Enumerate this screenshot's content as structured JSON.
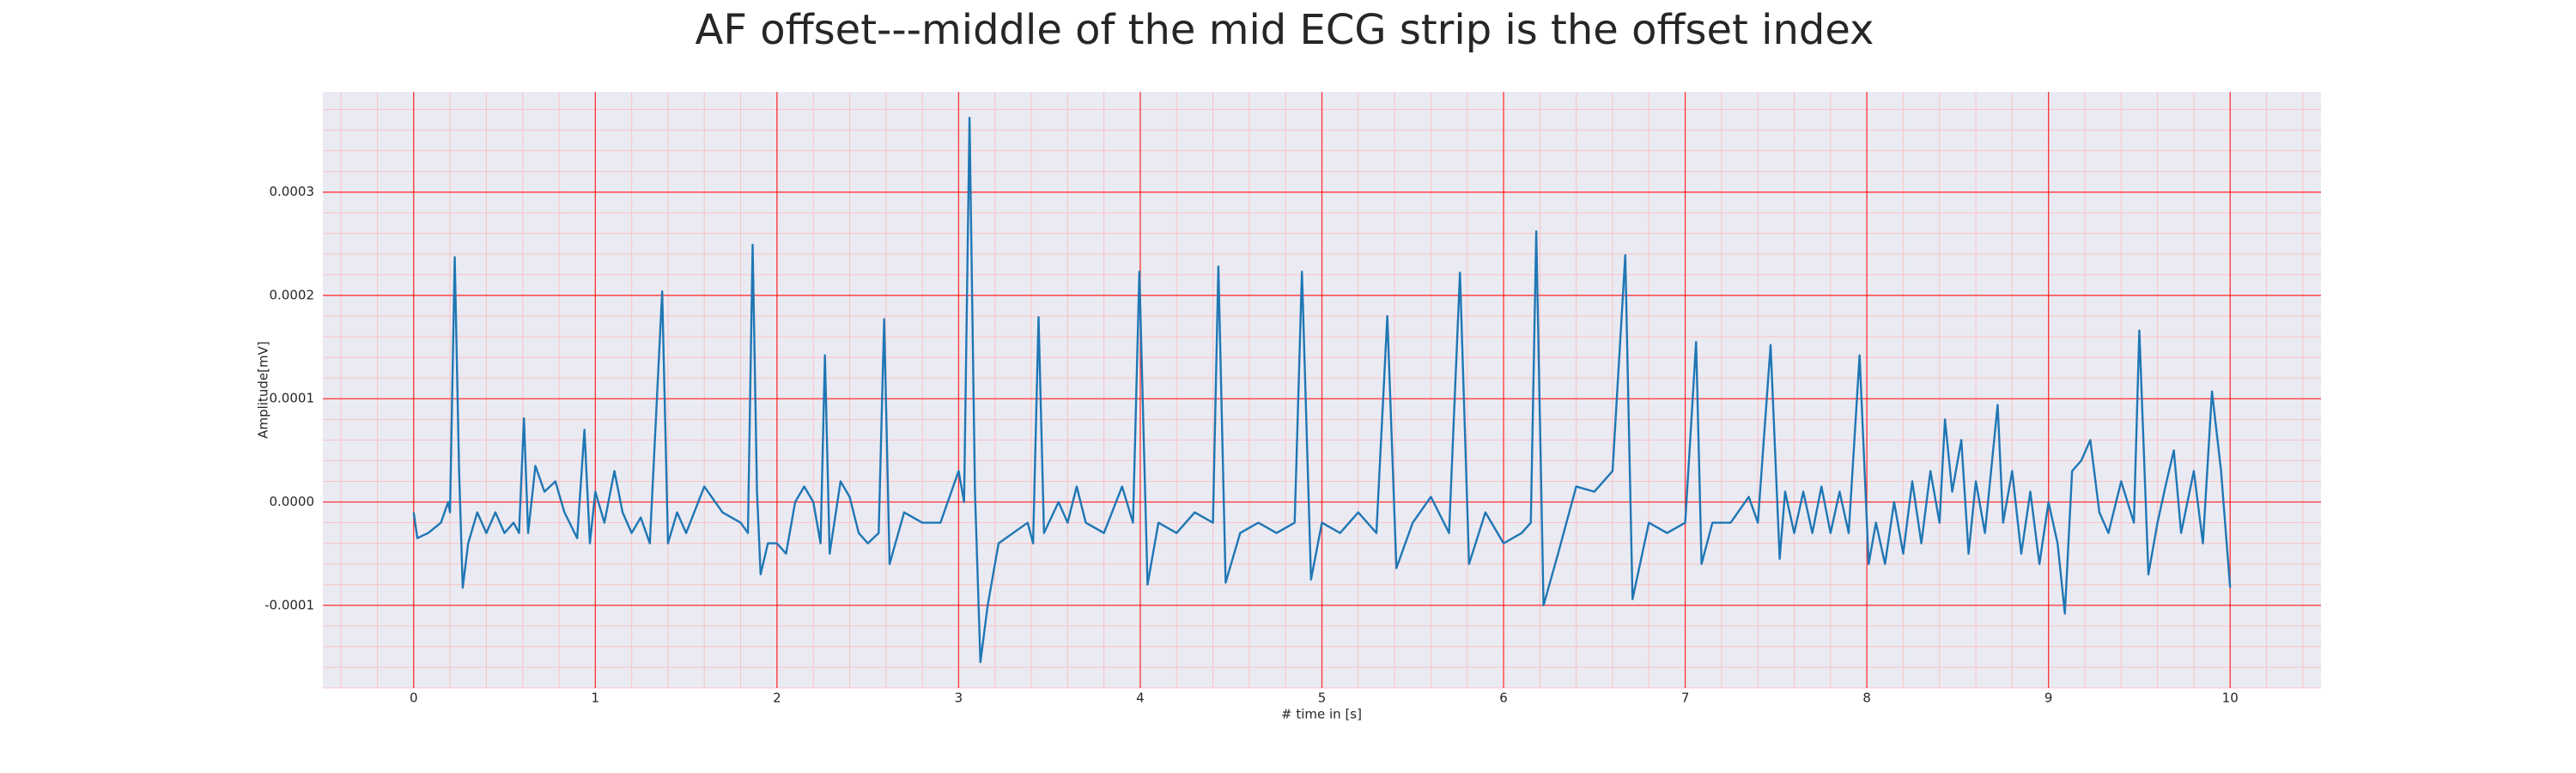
{
  "chart_data": {
    "type": "line",
    "title": "AF offset---middle of the mid ECG strip is the offset index",
    "xlabel": "# time in [s]",
    "ylabel": "Amplitude[mV]",
    "color": "#1f77b4",
    "background": "#eaeaf2",
    "grid": true,
    "grid_color": "#ff0000",
    "minor_grid": true,
    "minor_grid_color": "#ffb3b3",
    "xlim": [
      -0.5,
      10.5
    ],
    "ylim": [
      -0.00018,
      0.000397
    ],
    "xticks": [
      0,
      1,
      2,
      3,
      4,
      5,
      6,
      7,
      8,
      9,
      10
    ],
    "yticks": [
      -0.0001,
      {
        "value": 0,
        "label": "0.0000"
      },
      0.0001,
      0.0002,
      0.0003
    ],
    "x": [
      0,
      0.02,
      0.08,
      0.15,
      0.19,
      0.2,
      0.226,
      0.25,
      0.27,
      0.3,
      0.35,
      0.4,
      0.45,
      0.5,
      0.55,
      0.58,
      0.607,
      0.63,
      0.67,
      0.72,
      0.78,
      0.83,
      0.9,
      0.94,
      0.97,
      1.0,
      1.05,
      1.105,
      1.15,
      1.2,
      1.25,
      1.3,
      1.368,
      1.4,
      1.45,
      1.5,
      1.6,
      1.7,
      1.8,
      1.84,
      1.866,
      1.89,
      1.91,
      1.95,
      2.0,
      2.05,
      2.1,
      2.15,
      2.2,
      2.24,
      2.264,
      2.29,
      2.35,
      2.4,
      2.45,
      2.5,
      2.56,
      2.59,
      2.62,
      2.7,
      2.8,
      2.9,
      3.0,
      3.03,
      3.06,
      3.09,
      3.12,
      3.16,
      3.22,
      3.3,
      3.38,
      3.41,
      3.44,
      3.47,
      3.55,
      3.6,
      3.65,
      3.7,
      3.8,
      3.9,
      3.96,
      3.995,
      4.04,
      4.1,
      4.2,
      4.3,
      4.4,
      4.43,
      4.47,
      4.55,
      4.65,
      4.75,
      4.85,
      4.89,
      4.94,
      5.0,
      5.1,
      5.2,
      5.3,
      5.36,
      5.41,
      5.5,
      5.6,
      5.7,
      5.76,
      5.81,
      5.9,
      6.0,
      6.1,
      6.15,
      6.18,
      6.22,
      6.3,
      6.4,
      6.5,
      6.6,
      6.67,
      6.71,
      6.8,
      6.9,
      7.0,
      7.06,
      7.09,
      7.15,
      7.25,
      7.35,
      7.4,
      7.47,
      7.52,
      7.55,
      7.6,
      7.65,
      7.7,
      7.75,
      7.8,
      7.85,
      7.9,
      7.96,
      8.01,
      8.05,
      8.1,
      8.15,
      8.2,
      8.25,
      8.3,
      8.35,
      8.4,
      8.43,
      8.47,
      8.52,
      8.56,
      8.6,
      8.65,
      8.72,
      8.75,
      8.8,
      8.85,
      8.9,
      8.95,
      9.0,
      9.05,
      9.09,
      9.13,
      9.18,
      9.23,
      9.28,
      9.33,
      9.4,
      9.47,
      9.5,
      9.55,
      9.6,
      9.65,
      9.69,
      9.73,
      9.8,
      9.85,
      9.9,
      9.95,
      10.0
    ],
    "values": [
      -1e-05,
      -3.5e-05,
      -3e-05,
      -2e-05,
      0.0,
      -1e-05,
      0.000237,
      3e-05,
      -8.3e-05,
      -4e-05,
      -1e-05,
      -3e-05,
      -1e-05,
      -3e-05,
      -2e-05,
      -3e-05,
      8.1e-05,
      -3e-05,
      3.5e-05,
      1e-05,
      2e-05,
      -1e-05,
      -3.5e-05,
      7e-05,
      -4e-05,
      1e-05,
      -2e-05,
      3e-05,
      -1e-05,
      -3e-05,
      -1.5e-05,
      -4e-05,
      0.000204,
      -4e-05,
      -1e-05,
      -3e-05,
      1.5e-05,
      -1e-05,
      -2e-05,
      -3e-05,
      0.000249,
      1e-05,
      -7e-05,
      -4e-05,
      -4e-05,
      -5e-05,
      0.0,
      1.5e-05,
      0.0,
      -4e-05,
      0.000142,
      -5e-05,
      2e-05,
      5e-06,
      -3e-05,
      -4e-05,
      -3e-05,
      0.000177,
      -6e-05,
      -1e-05,
      -2e-05,
      -2e-05,
      3e-05,
      0.0,
      0.000372,
      1e-05,
      -0.000155,
      -0.0001,
      -4e-05,
      -3e-05,
      -2e-05,
      -4e-05,
      0.000179,
      -3e-05,
      0.0,
      -2e-05,
      1.5e-05,
      -2e-05,
      -3e-05,
      1.5e-05,
      -2e-05,
      0.000223,
      -8e-05,
      -2e-05,
      -3e-05,
      -1e-05,
      -2e-05,
      0.000228,
      -7.8e-05,
      -3e-05,
      -2e-05,
      -3e-05,
      -2e-05,
      0.000223,
      -7.5e-05,
      -2e-05,
      -3e-05,
      -1e-05,
      -3e-05,
      0.00018,
      -6.4e-05,
      -2e-05,
      5e-06,
      -3e-05,
      0.000222,
      -6e-05,
      -1e-05,
      -4e-05,
      -3e-05,
      -2e-05,
      0.000262,
      -0.0001,
      -5e-05,
      1.5e-05,
      1e-05,
      3e-05,
      0.000239,
      -9.4e-05,
      -2e-05,
      -3e-05,
      -2e-05,
      0.000155,
      -6e-05,
      -2e-05,
      -2e-05,
      5e-06,
      -2e-05,
      0.000152,
      -5.5e-05,
      1e-05,
      -3e-05,
      1e-05,
      -3e-05,
      1.5e-05,
      -3e-05,
      1e-05,
      -3e-05,
      0.000142,
      -6e-05,
      -2e-05,
      -6e-05,
      0.0,
      -5e-05,
      2e-05,
      -4e-05,
      3e-05,
      -2e-05,
      8e-05,
      1e-05,
      6e-05,
      -5e-05,
      2e-05,
      -3e-05,
      9.4e-05,
      -2e-05,
      3e-05,
      -5e-05,
      1e-05,
      -6e-05,
      0.0,
      -4e-05,
      -0.000108,
      3e-05,
      4e-05,
      6e-05,
      -1e-05,
      -3e-05,
      2e-05,
      -2e-05,
      0.000166,
      -7e-05,
      -2e-05,
      2e-05,
      5e-05,
      -3e-05,
      3e-05,
      -4e-05,
      0.000107,
      3e-05,
      -8.3e-05
    ]
  }
}
